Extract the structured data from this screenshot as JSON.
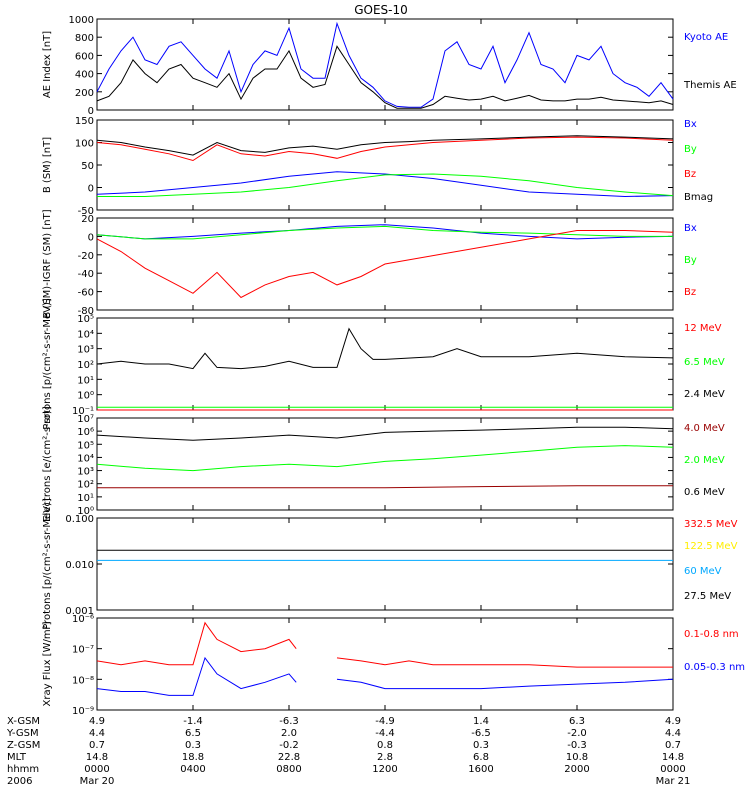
{
  "title": "GOES-10",
  "colors": {
    "blue": "#0000ff",
    "black": "#000000",
    "red": "#ff0000",
    "green": "#00ff00",
    "darkred": "#990000",
    "yellow": "#ffee00",
    "cyan": "#00a8ff"
  },
  "time_axis": {
    "row_labels": [
      "X-GSM",
      "Y-GSM",
      "Z-GSM",
      "MLT",
      "hhmm",
      "2006"
    ],
    "columns": [
      {
        "x": 0,
        "values": [
          "4.9",
          "4.4",
          "0.7",
          "14.8",
          "0000",
          "Mar 20"
        ]
      },
      {
        "x": 4,
        "values": [
          "-1.4",
          "6.5",
          "0.3",
          "18.8",
          "0400",
          ""
        ]
      },
      {
        "x": 8,
        "values": [
          "-6.3",
          "2.0",
          "-0.2",
          "22.8",
          "0800",
          ""
        ]
      },
      {
        "x": 12,
        "values": [
          "-4.9",
          "-4.4",
          "0.8",
          "2.8",
          "1200",
          ""
        ]
      },
      {
        "x": 16,
        "values": [
          "1.4",
          "-6.5",
          "0.3",
          "6.8",
          "1600",
          ""
        ]
      },
      {
        "x": 20,
        "values": [
          "6.3",
          "-2.0",
          "-0.3",
          "10.8",
          "2000",
          ""
        ]
      },
      {
        "x": 24,
        "values": [
          "4.9",
          "4.4",
          "0.7",
          "14.8",
          "0000",
          "Mar 21"
        ]
      }
    ]
  },
  "chart_data": [
    {
      "type": "line",
      "title": "GOES-10",
      "ylabel": "AE Index [nT]",
      "ylim": [
        0,
        1000
      ],
      "yscale": "linear",
      "yticks": [
        "0",
        "200",
        "400",
        "600",
        "800",
        "1000"
      ],
      "xlim": [
        0,
        24
      ],
      "series": [
        {
          "name": "Kyoto AE",
          "color": "blue",
          "x": [
            0,
            0.5,
            1,
            1.5,
            2,
            2.5,
            3,
            3.5,
            4,
            4.5,
            5,
            5.5,
            6,
            6.5,
            7,
            7.5,
            8,
            8.5,
            9,
            9.5,
            10,
            10.5,
            11,
            11.5,
            12,
            12.5,
            13,
            13.5,
            14,
            14.5,
            15,
            15.5,
            16,
            16.5,
            17,
            17.5,
            18,
            18.5,
            19,
            19.5,
            20,
            20.5,
            21,
            21.5,
            22,
            22.5,
            23,
            23.5,
            24
          ],
          "values": [
            200,
            450,
            650,
            800,
            550,
            500,
            700,
            750,
            600,
            450,
            350,
            650,
            200,
            500,
            650,
            600,
            900,
            450,
            350,
            350,
            950,
            600,
            350,
            250,
            100,
            40,
            30,
            30,
            120,
            650,
            750,
            500,
            450,
            700,
            300,
            550,
            850,
            500,
            450,
            300,
            600,
            550,
            700,
            400,
            300,
            250,
            150,
            300,
            120
          ]
        },
        {
          "name": "Themis AE",
          "color": "black",
          "x": [
            0,
            0.5,
            1,
            1.5,
            2,
            2.5,
            3,
            3.5,
            4,
            4.5,
            5,
            5.5,
            6,
            6.5,
            7,
            7.5,
            8,
            8.5,
            9,
            9.5,
            10,
            10.5,
            11,
            11.5,
            12,
            12.5,
            13,
            13.5,
            14,
            14.5,
            15,
            15.5,
            16,
            16.5,
            17,
            17.5,
            18,
            18.5,
            19,
            19.5,
            20,
            20.5,
            21,
            21.5,
            22,
            22.5,
            23,
            23.5,
            24
          ],
          "values": [
            100,
            150,
            300,
            550,
            400,
            300,
            450,
            500,
            350,
            300,
            250,
            400,
            120,
            350,
            450,
            450,
            650,
            350,
            250,
            280,
            700,
            500,
            300,
            200,
            80,
            20,
            20,
            20,
            60,
            150,
            130,
            110,
            120,
            150,
            100,
            130,
            160,
            110,
            100,
            100,
            120,
            120,
            140,
            110,
            100,
            90,
            80,
            100,
            60
          ]
        }
      ]
    },
    {
      "type": "line",
      "ylabel": "B (SM) [nT]",
      "ylim": [
        -50,
        150
      ],
      "yscale": "linear",
      "yticks": [
        "-50",
        "0",
        "50",
        "100",
        "150"
      ],
      "xlim": [
        0,
        24
      ],
      "series": [
        {
          "name": "Bx",
          "color": "blue",
          "x": [
            0,
            2,
            4,
            6,
            8,
            10,
            12,
            14,
            16,
            18,
            20,
            22,
            24
          ],
          "values": [
            -15,
            -10,
            0,
            10,
            25,
            35,
            30,
            20,
            5,
            -10,
            -15,
            -20,
            -18
          ]
        },
        {
          "name": "By",
          "color": "green",
          "x": [
            0,
            2,
            4,
            6,
            8,
            10,
            12,
            14,
            16,
            18,
            20,
            22,
            24
          ],
          "values": [
            -20,
            -20,
            -15,
            -10,
            0,
            15,
            28,
            30,
            25,
            15,
            0,
            -10,
            -18
          ]
        },
        {
          "name": "Bz",
          "color": "red",
          "x": [
            0,
            1,
            2,
            3,
            4,
            5,
            6,
            7,
            8,
            9,
            10,
            11,
            12,
            13,
            14,
            16,
            18,
            20,
            22,
            24
          ],
          "values": [
            100,
            95,
            85,
            75,
            60,
            95,
            75,
            70,
            80,
            75,
            65,
            80,
            90,
            95,
            100,
            105,
            110,
            112,
            110,
            105
          ]
        },
        {
          "name": "Bmag",
          "color": "black",
          "x": [
            0,
            1,
            2,
            3,
            4,
            5,
            6,
            7,
            8,
            9,
            10,
            11,
            12,
            13,
            14,
            16,
            18,
            20,
            22,
            24
          ],
          "values": [
            105,
            100,
            90,
            82,
            72,
            100,
            82,
            78,
            88,
            92,
            85,
            95,
            100,
            102,
            105,
            108,
            112,
            115,
            112,
            108
          ]
        }
      ]
    },
    {
      "type": "line",
      "ylabel": "B (SM)-IGRF (SM) [nT]",
      "ylim": [
        -90,
        20
      ],
      "yscale": "linear",
      "yticks": [
        "-80",
        "-60",
        "-40",
        "-20",
        "0",
        "20"
      ],
      "xlim": [
        0,
        24
      ],
      "series": [
        {
          "name": "Bx",
          "color": "blue",
          "x": [
            0,
            2,
            4,
            6,
            8,
            10,
            12,
            14,
            16,
            18,
            20,
            22,
            24
          ],
          "values": [
            0,
            -5,
            -2,
            2,
            5,
            10,
            12,
            8,
            2,
            -2,
            -5,
            -3,
            -2
          ]
        },
        {
          "name": "By",
          "color": "green",
          "x": [
            0,
            2,
            4,
            6,
            8,
            10,
            12,
            14,
            16,
            18,
            20,
            22,
            24
          ],
          "values": [
            0,
            -5,
            -5,
            0,
            5,
            8,
            10,
            5,
            3,
            2,
            0,
            -2,
            -2
          ]
        },
        {
          "name": "Bz",
          "color": "red",
          "x": [
            0,
            1,
            2,
            3,
            4,
            5,
            6,
            7,
            8,
            9,
            10,
            11,
            12,
            14,
            16,
            18,
            20,
            22,
            24
          ],
          "values": [
            -5,
            -20,
            -40,
            -55,
            -70,
            -45,
            -75,
            -60,
            -50,
            -45,
            -60,
            -50,
            -35,
            -25,
            -15,
            -5,
            5,
            5,
            3
          ]
        }
      ]
    },
    {
      "type": "line",
      "ylabel": "Protons [p/(cm²-s-sr-MeV)]",
      "ylim": [
        0.1,
        100000
      ],
      "yscale": "log",
      "yticks": [
        "10⁻¹",
        "10⁰",
        "10¹",
        "10²",
        "10³",
        "10⁴",
        "10⁵"
      ],
      "xlim": [
        0,
        24
      ],
      "series": [
        {
          "name": "12 MeV",
          "color": "red",
          "x": [
            0,
            24
          ],
          "values": [
            0.1,
            0.1
          ]
        },
        {
          "name": "6.5 MeV",
          "color": "green",
          "x": [
            0,
            24
          ],
          "values": [
            0.15,
            0.15
          ]
        },
        {
          "name": "2.4 MeV",
          "color": "black",
          "x": [
            0,
            1,
            2,
            3,
            4,
            4.5,
            5,
            6,
            7,
            8,
            9,
            10,
            10.5,
            11,
            11.5,
            12,
            14,
            15,
            16,
            18,
            20,
            22,
            24
          ],
          "values": [
            100,
            150,
            100,
            100,
            50,
            500,
            60,
            50,
            70,
            150,
            60,
            60,
            20000,
            1000,
            200,
            200,
            300,
            1000,
            300,
            300,
            500,
            300,
            250
          ]
        }
      ]
    },
    {
      "type": "line",
      "ylabel": "Electrons [e/(cm²-s-sr)]",
      "ylim": [
        1,
        10000000
      ],
      "yscale": "log",
      "yticks": [
        "10⁰",
        "10¹",
        "10²",
        "10³",
        "10⁴",
        "10⁵",
        "10⁶",
        "10⁷"
      ],
      "xlim": [
        0,
        24
      ],
      "series": [
        {
          "name": "4.0 MeV",
          "color": "darkred",
          "x": [
            0,
            4,
            8,
            12,
            16,
            20,
            24
          ],
          "values": [
            50,
            50,
            50,
            50,
            60,
            70,
            70
          ]
        },
        {
          "name": "2.0 MeV",
          "color": "green",
          "x": [
            0,
            2,
            4,
            6,
            8,
            10,
            12,
            14,
            16,
            18,
            20,
            22,
            24
          ],
          "values": [
            3000,
            1500,
            1000,
            2000,
            3000,
            2000,
            5000,
            8000,
            15000,
            30000,
            60000,
            80000,
            60000
          ]
        },
        {
          "name": "0.6 MeV",
          "color": "black",
          "x": [
            0,
            2,
            4,
            6,
            8,
            10,
            12,
            14,
            16,
            18,
            20,
            22,
            24
          ],
          "values": [
            500000,
            300000,
            200000,
            300000,
            500000,
            300000,
            800000,
            1000000,
            1200000,
            1500000,
            2000000,
            2000000,
            1500000
          ]
        }
      ]
    },
    {
      "type": "line",
      "ylabel": "Protons [p/(cm²-s-sr-MeV)]",
      "ylim": [
        0.001,
        0.1
      ],
      "yscale": "log",
      "yticks": [
        "0.001",
        "0.010",
        "0.100"
      ],
      "xlim": [
        0,
        24
      ],
      "series": [
        {
          "name": "332.5 MeV",
          "color": "red",
          "x": [],
          "values": []
        },
        {
          "name": "122.5 MeV",
          "color": "yellow",
          "x": [],
          "values": []
        },
        {
          "name": "60 MeV",
          "color": "cyan",
          "x": [
            0,
            24
          ],
          "values": [
            0.012,
            0.012
          ]
        },
        {
          "name": "27.5 MeV",
          "color": "black",
          "x": [
            0,
            24
          ],
          "values": [
            0.02,
            0.02
          ]
        }
      ]
    },
    {
      "type": "line",
      "ylabel": "Xray Flux [W/m²]",
      "ylim": [
        1e-09,
        1e-06
      ],
      "yscale": "log",
      "yticks": [
        "10⁻⁹",
        "10⁻⁸",
        "10⁻⁷",
        "10⁻⁶"
      ],
      "xlim": [
        0,
        24
      ],
      "series": [
        {
          "name": "0.1-0.8 nm",
          "color": "red",
          "x": [
            0,
            1,
            2,
            3,
            4,
            4.5,
            5,
            6,
            7,
            8,
            8.3,
            9.3,
            10,
            11,
            12,
            13,
            14,
            16,
            18,
            20,
            22,
            24
          ],
          "values": [
            4e-08,
            3e-08,
            4e-08,
            3e-08,
            3e-08,
            7e-07,
            2e-07,
            8e-08,
            1e-07,
            2e-07,
            1e-07,
            null,
            5e-08,
            4e-08,
            3e-08,
            4e-08,
            3e-08,
            3e-08,
            3e-08,
            2.5e-08,
            2.5e-08,
            2.5e-08
          ]
        },
        {
          "name": "0.05-0.3 nm",
          "color": "blue",
          "x": [
            0,
            1,
            2,
            3,
            4,
            4.5,
            5,
            6,
            7,
            8,
            8.3,
            9.3,
            10,
            11,
            12,
            13,
            14,
            16,
            18,
            20,
            22,
            24
          ],
          "values": [
            5e-09,
            4e-09,
            4e-09,
            3e-09,
            3e-09,
            5e-08,
            1.5e-08,
            5e-09,
            8e-09,
            1.5e-08,
            8e-09,
            null,
            1e-08,
            8e-09,
            5e-09,
            5e-09,
            5e-09,
            5e-09,
            6e-09,
            7e-09,
            8e-09,
            1e-08
          ]
        }
      ]
    }
  ]
}
